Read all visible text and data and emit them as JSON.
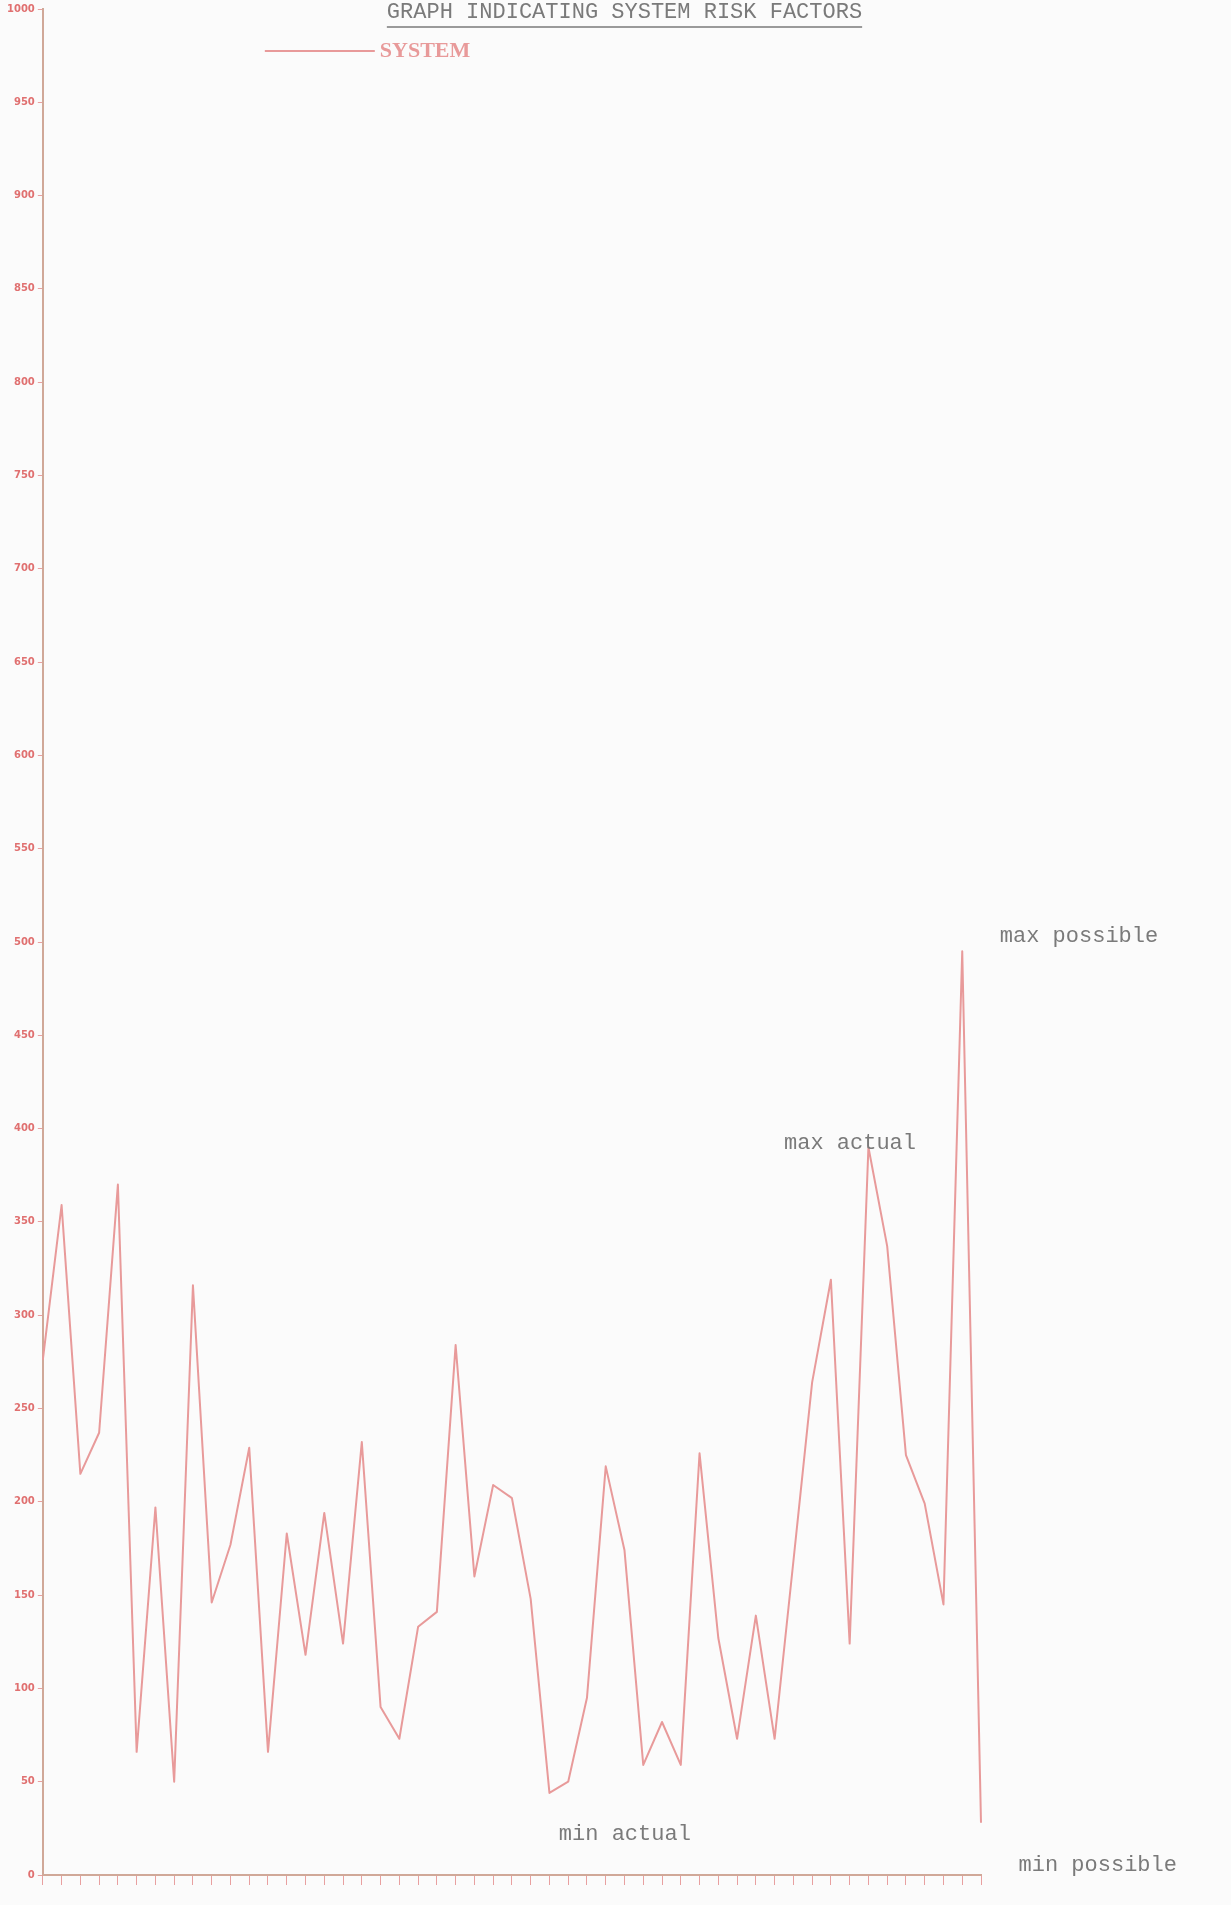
{
  "chart_data": {
    "type": "line",
    "title": "GRAPH INDICATING SYSTEM RISK FACTORS",
    "categories": [
      null,
      null,
      null,
      null,
      null,
      null,
      null,
      null,
      null,
      null,
      null,
      null,
      null,
      null,
      null,
      null,
      null,
      null,
      null,
      null,
      null,
      null,
      null,
      null,
      null,
      null,
      null,
      null,
      null,
      null,
      null,
      null,
      null,
      null,
      null,
      null,
      null,
      null,
      null,
      null,
      null,
      null,
      null,
      null,
      null,
      null,
      null,
      null,
      null,
      null,
      null
    ],
    "series": [
      {
        "name": "SYSTEM",
        "color": "#e89a9a",
        "values": [
          276,
          359,
          215,
          237,
          370,
          66,
          197,
          50,
          316,
          146,
          177,
          229,
          66,
          183,
          118,
          194,
          124,
          232,
          90,
          73,
          133,
          141,
          284,
          160,
          209,
          202,
          148,
          44,
          50,
          95,
          219,
          174,
          59,
          82,
          59,
          226,
          127,
          73,
          139,
          73,
          168,
          264,
          319,
          124,
          390,
          337,
          225,
          199,
          145,
          495,
          28
        ]
      }
    ],
    "ylim": [
      0,
      1000
    ],
    "yticks": [
      0,
      50,
      100,
      150,
      200,
      250,
      300,
      350,
      400,
      450,
      500,
      550,
      600,
      650,
      700,
      750,
      800,
      850,
      900,
      950,
      1000
    ],
    "legend": "top left",
    "grid": false,
    "marker": "none",
    "line_style": "solid",
    "annotations": [
      "max possible",
      "max actual",
      "min actual",
      "min possible"
    ]
  }
}
